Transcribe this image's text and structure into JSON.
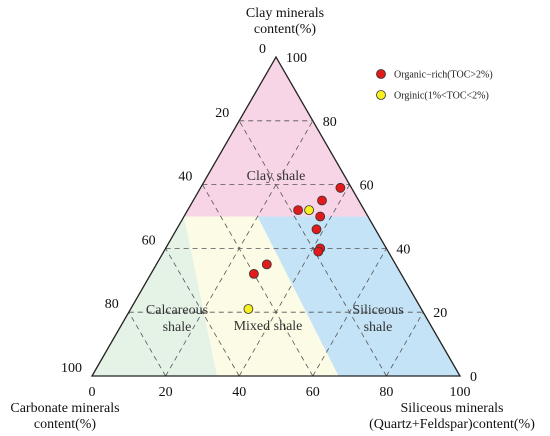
{
  "chart_data": {
    "type": "scatter",
    "subtype": "ternary",
    "title": "",
    "axes": {
      "top": {
        "label_lines": [
          "Clay minerals",
          "content(%)"
        ]
      },
      "left": {
        "label_lines": [
          "Carbonate minerals",
          "content(%)"
        ]
      },
      "right": {
        "label_lines": [
          "Siliceous minerals",
          "(Quartz+Feldspar)content(%)"
        ]
      }
    },
    "ticks": {
      "bottom": [
        "0",
        "20",
        "40",
        "60",
        "80",
        "100"
      ],
      "left": [
        "0",
        "20",
        "40",
        "60",
        "80",
        "100"
      ],
      "right": [
        "0",
        "20",
        "40",
        "60",
        "80",
        "100"
      ]
    },
    "grid": true,
    "regions": [
      {
        "name": "clay",
        "label_lines": [
          "Clay shale"
        ],
        "color": "#f7d4e6"
      },
      {
        "name": "calcareous",
        "label_lines": [
          "Calcareous",
          "shale"
        ],
        "color": "#e5f2e6"
      },
      {
        "name": "mixed",
        "label_lines": [
          "Mixed shale"
        ],
        "color": "#fcfbe6"
      },
      {
        "name": "siliceous",
        "label_lines": [
          "Siliceous",
          "shale"
        ],
        "color": "#c4e3f6"
      }
    ],
    "legend": {
      "placement": "top-right",
      "entries": [
        {
          "label": "Organic−rich(TOC>2%)",
          "color": "#e11b1b"
        },
        {
          "label": "Orginic(1%<TOC<2%)",
          "color": "#f7ef1e"
        }
      ]
    },
    "series": [
      {
        "name": "Organic−rich(TOC>2%)",
        "color": "#e11b1b",
        "points": [
          {
            "clay": 59,
            "siliceous": 38,
            "carbonate": 3
          },
          {
            "clay": 55,
            "siliceous": 35,
            "carbonate": 10
          },
          {
            "clay": 50,
            "siliceous": 37,
            "carbonate": 13
          },
          {
            "clay": 52,
            "siliceous": 30,
            "carbonate": 18
          },
          {
            "clay": 46,
            "siliceous": 38,
            "carbonate": 16
          },
          {
            "clay": 40,
            "siliceous": 42,
            "carbonate": 18
          },
          {
            "clay": 39,
            "siliceous": 42,
            "carbonate": 19
          },
          {
            "clay": 35,
            "siliceous": 30,
            "carbonate": 35
          },
          {
            "clay": 32,
            "siliceous": 28,
            "carbonate": 40
          }
        ]
      },
      {
        "name": "Orginic(1%<TOC<2%)",
        "color": "#f7ef1e",
        "points": [
          {
            "clay": 52,
            "siliceous": 33,
            "carbonate": 15
          },
          {
            "clay": 21,
            "siliceous": 32,
            "carbonate": 47
          }
        ]
      }
    ]
  }
}
